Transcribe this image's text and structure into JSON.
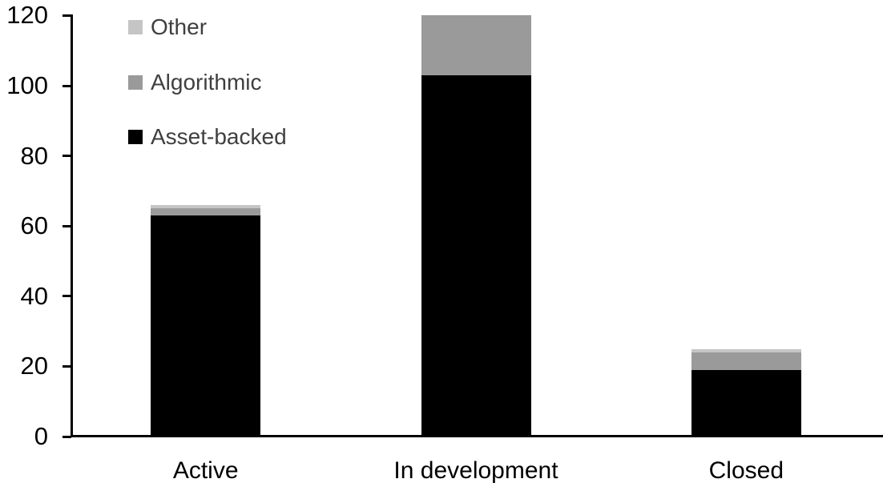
{
  "chart_data": {
    "type": "bar",
    "stacked": true,
    "title": "",
    "xlabel": "",
    "ylabel": "",
    "categories": [
      "Active",
      "In development",
      "Closed"
    ],
    "series": [
      {
        "name": "Asset-backed",
        "color": "#000000",
        "values": [
          63,
          103,
          19
        ]
      },
      {
        "name": "Algorithmic",
        "color": "#9a9a9a",
        "values": [
          2,
          17,
          5
        ]
      },
      {
        "name": "Other",
        "color": "#c5c5c5",
        "values": [
          1,
          0,
          1
        ]
      }
    ],
    "ylim": [
      0,
      120
    ],
    "yticks": [
      0,
      20,
      40,
      60,
      80,
      100,
      120
    ],
    "grid": false,
    "legend": {
      "position": "top-left",
      "order": [
        "Other",
        "Algorithmic",
        "Asset-backed"
      ]
    }
  },
  "colors": {
    "axis": "#000000",
    "tick_label": "#000000",
    "category_label": "#000000",
    "legend_text": "#3f3f3f",
    "background": "#ffffff"
  }
}
